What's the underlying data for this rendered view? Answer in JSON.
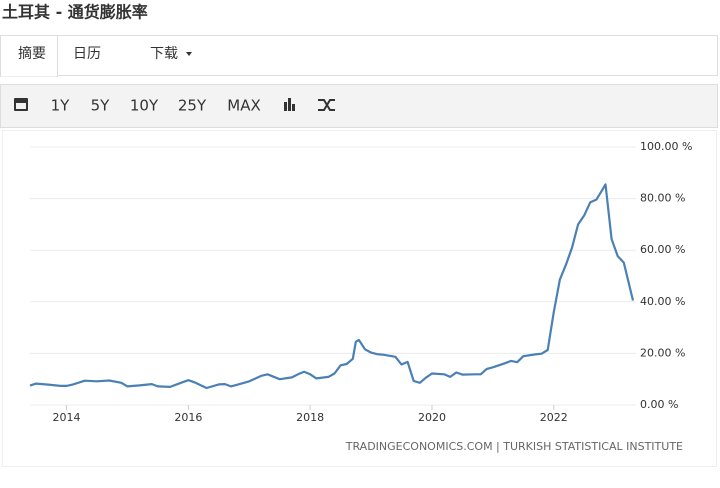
{
  "header": {
    "title": "土耳其 - 通货膨胀率"
  },
  "tabs": [
    "摘要",
    "日历",
    "下载"
  ],
  "toolbar": [
    "1Y",
    "5Y",
    "10Y",
    "25Y",
    "MAX"
  ],
  "chart_data": {
    "type": "line",
    "color": "#4a80b6",
    "grid": true,
    "source": "TRADINGECONOMICS.COM | TURKISH STATISTICAL INSTITUTE",
    "x": [
      2013.4,
      2013.5,
      2013.7,
      2013.9,
      2014.0,
      2014.1,
      2014.3,
      2014.5,
      2014.7,
      2014.9,
      2015.0,
      2015.2,
      2015.4,
      2015.5,
      2015.7,
      2015.9,
      2016.0,
      2016.1,
      2016.3,
      2016.5,
      2016.6,
      2016.7,
      2016.9,
      2017.0,
      2017.2,
      2017.3,
      2017.5,
      2017.7,
      2017.8,
      2017.9,
      2018.0,
      2018.1,
      2018.3,
      2018.4,
      2018.5,
      2018.6,
      2018.7,
      2018.75,
      2018.8,
      2018.9,
      2019.0,
      2019.1,
      2019.2,
      2019.4,
      2019.5,
      2019.6,
      2019.7,
      2019.8,
      2019.9,
      2020.0,
      2020.2,
      2020.3,
      2020.4,
      2020.5,
      2020.7,
      2020.8,
      2020.9,
      2021.0,
      2021.2,
      2021.3,
      2021.4,
      2021.5,
      2021.7,
      2021.8,
      2021.9,
      2022.0,
      2022.1,
      2022.2,
      2022.3,
      2022.4,
      2022.5,
      2022.6,
      2022.7,
      2022.8,
      2022.85,
      2022.95,
      2023.05,
      2023.15,
      2023.3
    ],
    "values": [
      7.5,
      8.3,
      7.9,
      7.4,
      7.4,
      7.9,
      9.4,
      9.2,
      9.5,
      8.6,
      7.2,
      7.6,
      8.1,
      7.2,
      7.0,
      8.8,
      9.6,
      8.8,
      6.6,
      8.0,
      8.1,
      7.2,
      8.5,
      9.2,
      11.3,
      11.9,
      10.0,
      10.7,
      11.9,
      12.9,
      11.9,
      10.3,
      10.9,
      12.2,
      15.4,
      15.9,
      17.9,
      24.5,
      25.2,
      21.6,
      20.3,
      19.7,
      19.5,
      18.7,
      15.7,
      16.7,
      9.3,
      8.6,
      10.6,
      12.2,
      11.9,
      10.9,
      12.6,
      11.8,
      11.9,
      11.9,
      14.0,
      14.6,
      16.2,
      17.1,
      16.6,
      18.9,
      19.6,
      19.9,
      21.3,
      36.1,
      48.7,
      54.4,
      61.1,
      70.0,
      73.5,
      78.6,
      79.6,
      83.5,
      85.5,
      64.3,
      57.7,
      55.2,
      40.5
    ],
    "xlim": [
      2013.4,
      2023.35
    ],
    "xticks": [
      2014,
      2016,
      2018,
      2020,
      2022
    ],
    "ylim": [
      0,
      100
    ],
    "yticks": [
      {
        "value": 0,
        "label": "0.00 %"
      },
      {
        "value": 20,
        "label": "20.00 %"
      },
      {
        "value": 40,
        "label": "40.00 %"
      },
      {
        "value": 60,
        "label": "60.00 %"
      },
      {
        "value": 80,
        "label": "80.00 %"
      },
      {
        "value": 100,
        "label": "100.00 %"
      }
    ]
  }
}
